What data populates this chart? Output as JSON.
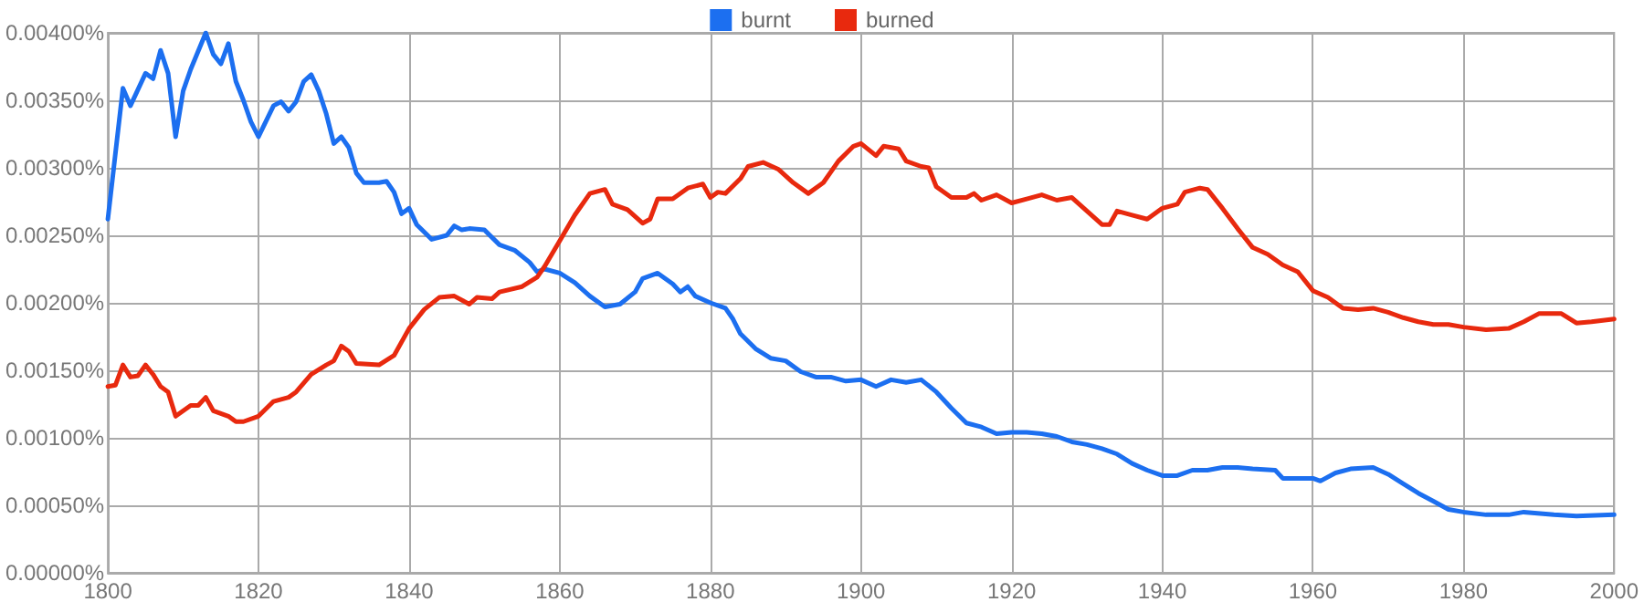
{
  "chart_data": {
    "type": "line",
    "series": [
      {
        "name": "burnt",
        "color": "#1c6ff0",
        "x": [
          1800,
          1802,
          1803,
          1805,
          1806,
          1807,
          1808,
          1809,
          1810,
          1811,
          1813,
          1814,
          1815,
          1816,
          1817,
          1818,
          1819,
          1820,
          1822,
          1823,
          1824,
          1825,
          1826,
          1827,
          1828,
          1829,
          1830,
          1831,
          1832,
          1833,
          1834,
          1836,
          1837,
          1838,
          1839,
          1840,
          1841,
          1843,
          1845,
          1846,
          1847,
          1848,
          1850,
          1852,
          1854,
          1856,
          1857,
          1858,
          1860,
          1862,
          1864,
          1866,
          1868,
          1870,
          1871,
          1873,
          1875,
          1876,
          1877,
          1878,
          1880,
          1882,
          1883,
          1884,
          1886,
          1888,
          1890,
          1892,
          1894,
          1896,
          1898,
          1900,
          1902,
          1904,
          1906,
          1908,
          1910,
          1912,
          1914,
          1916,
          1918,
          1920,
          1922,
          1924,
          1926,
          1928,
          1930,
          1932,
          1934,
          1936,
          1938,
          1940,
          1942,
          1944,
          1946,
          1948,
          1950,
          1952,
          1955,
          1956,
          1960,
          1961,
          1963,
          1965,
          1968,
          1970,
          1972,
          1974,
          1976,
          1978,
          1980,
          1983,
          1986,
          1988,
          1992,
          1995,
          2000
        ],
        "values": [
          0.00262,
          0.00359,
          0.00346,
          0.0037,
          0.00366,
          0.00387,
          0.0037,
          0.00323,
          0.00357,
          0.00373,
          0.004,
          0.00384,
          0.00377,
          0.00392,
          0.00364,
          0.0035,
          0.00334,
          0.00323,
          0.00346,
          0.00349,
          0.00342,
          0.00349,
          0.00364,
          0.00369,
          0.00357,
          0.0034,
          0.00318,
          0.00323,
          0.00315,
          0.00296,
          0.00289,
          0.00289,
          0.0029,
          0.00282,
          0.00266,
          0.0027,
          0.00258,
          0.00247,
          0.0025,
          0.00257,
          0.00254,
          0.00255,
          0.00254,
          0.00243,
          0.00239,
          0.0023,
          0.00223,
          0.00225,
          0.00222,
          0.00215,
          0.00205,
          0.00197,
          0.00199,
          0.00208,
          0.00218,
          0.00222,
          0.00214,
          0.00208,
          0.00212,
          0.00205,
          0.002,
          0.00196,
          0.00188,
          0.00177,
          0.00166,
          0.00159,
          0.00157,
          0.00149,
          0.00145,
          0.00145,
          0.00142,
          0.00143,
          0.00138,
          0.00143,
          0.00141,
          0.00143,
          0.00134,
          0.00122,
          0.00111,
          0.00108,
          0.00103,
          0.00104,
          0.00104,
          0.00103,
          0.00101,
          0.00097,
          0.00095,
          0.00092,
          0.00088,
          0.00081,
          0.00076,
          0.00072,
          0.00072,
          0.00076,
          0.00076,
          0.00078,
          0.00078,
          0.00077,
          0.00076,
          0.0007,
          0.0007,
          0.00068,
          0.00074,
          0.00077,
          0.00078,
          0.00073,
          0.00066,
          0.00059,
          0.00053,
          0.00047,
          0.00045,
          0.00043,
          0.00043,
          0.00045,
          0.00043,
          0.00042,
          0.00043
        ]
      },
      {
        "name": "burned",
        "color": "#e8290e",
        "x": [
          1800,
          1801,
          1802,
          1803,
          1804,
          1805,
          1806,
          1807,
          1808,
          1809,
          1811,
          1812,
          1813,
          1814,
          1816,
          1817,
          1818,
          1820,
          1822,
          1824,
          1825,
          1827,
          1829,
          1830,
          1831,
          1832,
          1833,
          1836,
          1838,
          1840,
          1842,
          1844,
          1846,
          1848,
          1849,
          1851,
          1852,
          1855,
          1857,
          1858,
          1860,
          1862,
          1864,
          1866,
          1867,
          1869,
          1871,
          1872,
          1873,
          1875,
          1877,
          1879,
          1880,
          1881,
          1882,
          1884,
          1885,
          1887,
          1889,
          1891,
          1893,
          1895,
          1897,
          1899,
          1900,
          1902,
          1903,
          1905,
          1906,
          1908,
          1909,
          1910,
          1912,
          1914,
          1915,
          1916,
          1918,
          1920,
          1922,
          1924,
          1926,
          1928,
          1930,
          1932,
          1933,
          1934,
          1936,
          1938,
          1940,
          1942,
          1943,
          1945,
          1946,
          1948,
          1950,
          1952,
          1954,
          1956,
          1958,
          1960,
          1962,
          1964,
          1966,
          1968,
          1970,
          1972,
          1974,
          1976,
          1978,
          1980,
          1983,
          1986,
          1988,
          1990,
          1993,
          1995,
          1997,
          2000
        ],
        "values": [
          0.00138,
          0.00139,
          0.00154,
          0.00145,
          0.00146,
          0.00154,
          0.00147,
          0.00138,
          0.00134,
          0.00116,
          0.00124,
          0.00124,
          0.0013,
          0.0012,
          0.00116,
          0.00112,
          0.00112,
          0.00116,
          0.00127,
          0.0013,
          0.00134,
          0.00147,
          0.00154,
          0.00157,
          0.00168,
          0.00164,
          0.00155,
          0.00154,
          0.00161,
          0.00181,
          0.00195,
          0.00204,
          0.00205,
          0.00199,
          0.00204,
          0.00203,
          0.00208,
          0.00212,
          0.00219,
          0.00227,
          0.00246,
          0.00265,
          0.00281,
          0.00284,
          0.00273,
          0.00269,
          0.00259,
          0.00262,
          0.00277,
          0.00277,
          0.00285,
          0.00288,
          0.00278,
          0.00282,
          0.00281,
          0.00292,
          0.00301,
          0.00304,
          0.00299,
          0.00289,
          0.00281,
          0.00289,
          0.00305,
          0.00316,
          0.00318,
          0.00309,
          0.00316,
          0.00314,
          0.00305,
          0.00301,
          0.003,
          0.00286,
          0.00278,
          0.00278,
          0.00281,
          0.00276,
          0.0028,
          0.00274,
          0.00277,
          0.0028,
          0.00276,
          0.00278,
          0.00268,
          0.00258,
          0.00258,
          0.00268,
          0.00265,
          0.00262,
          0.0027,
          0.00273,
          0.00282,
          0.00285,
          0.00284,
          0.0027,
          0.00255,
          0.00241,
          0.00236,
          0.00228,
          0.00223,
          0.00209,
          0.00204,
          0.00196,
          0.00195,
          0.00196,
          0.00193,
          0.00189,
          0.00186,
          0.00184,
          0.00184,
          0.00182,
          0.0018,
          0.00181,
          0.00186,
          0.00192,
          0.00192,
          0.00185,
          0.00186,
          0.00188
        ]
      }
    ],
    "xlim": [
      1800,
      2000
    ],
    "xticks": [
      1800,
      1820,
      1840,
      1860,
      1880,
      1900,
      1920,
      1940,
      1960,
      1980,
      2000
    ],
    "ylim": [
      0,
      0.004
    ],
    "yticks": [
      {
        "value": 0,
        "label": "0.00000%"
      },
      {
        "value": 0.0005,
        "label": "0.00050%"
      },
      {
        "value": 0.001,
        "label": "0.00100%"
      },
      {
        "value": 0.0015,
        "label": "0.00150%"
      },
      {
        "value": 0.002,
        "label": "0.00200%"
      },
      {
        "value": 0.0025,
        "label": "0.00250%"
      },
      {
        "value": 0.003,
        "label": "0.00300%"
      },
      {
        "value": 0.0035,
        "label": "0.00350%"
      },
      {
        "value": 0.004,
        "label": "0.00400%"
      }
    ],
    "grid": true,
    "legend": "top",
    "marker": "none",
    "line_style": "solid"
  }
}
